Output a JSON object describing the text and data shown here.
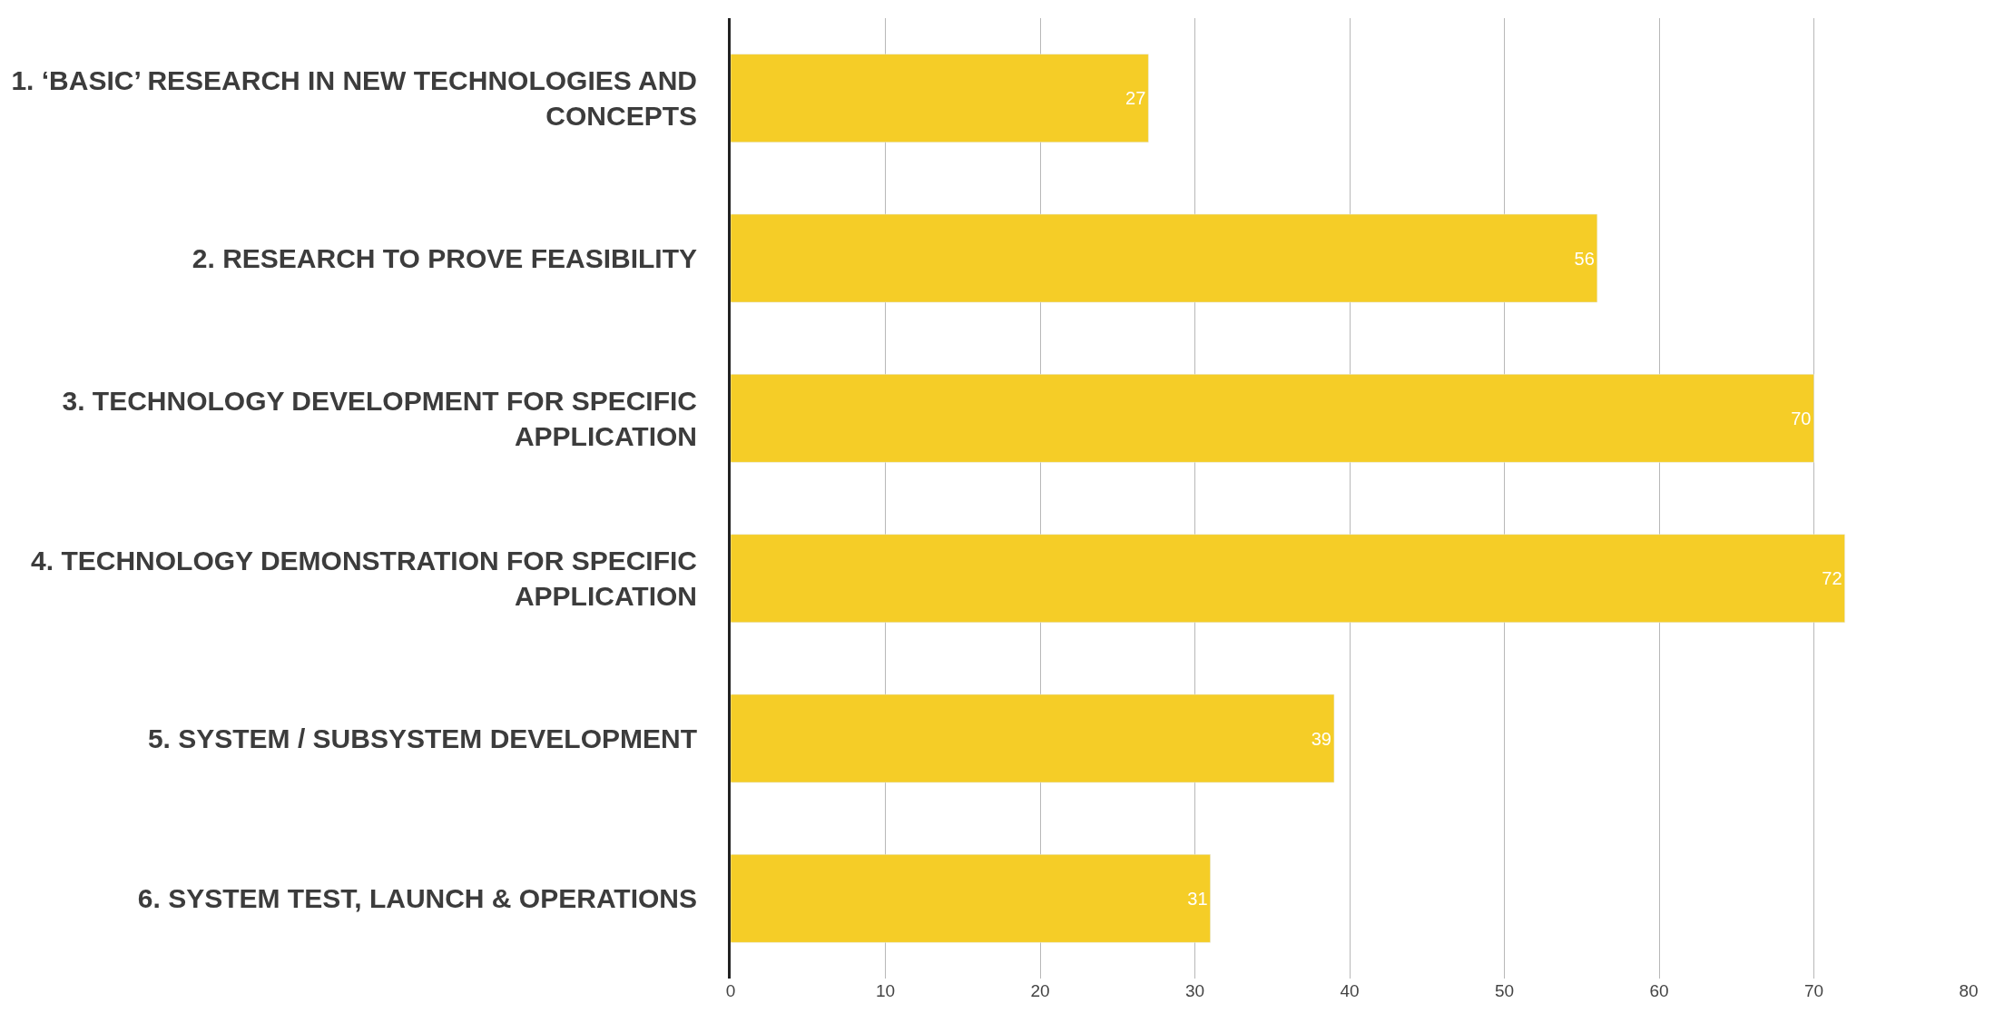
{
  "chart_data": {
    "type": "bar",
    "orientation": "horizontal",
    "categories": [
      "1. ‘BASIC’ RESEARCH IN NEW TECHNOLOGIES AND CONCEPTS",
      "2. RESEARCH TO PROVE FEASIBILITY",
      "3. TECHNOLOGY DEVELOPMENT FOR SPECIFIC APPLICATION",
      "4. TECHNOLOGY DEMONSTRATION FOR SPECIFIC APPLICATION",
      "5. SYSTEM / SUBSYSTEM DEVELOPMENT",
      "6. SYSTEM TEST, LAUNCH & OPERATIONS"
    ],
    "values": [
      27,
      56,
      70,
      72,
      39,
      31
    ],
    "color": "#f5cd27",
    "xlim": [
      0,
      80
    ],
    "xticks": [
      0,
      10,
      20,
      30,
      40,
      50,
      60,
      70,
      80
    ],
    "grid": "x",
    "data_labels": true
  }
}
